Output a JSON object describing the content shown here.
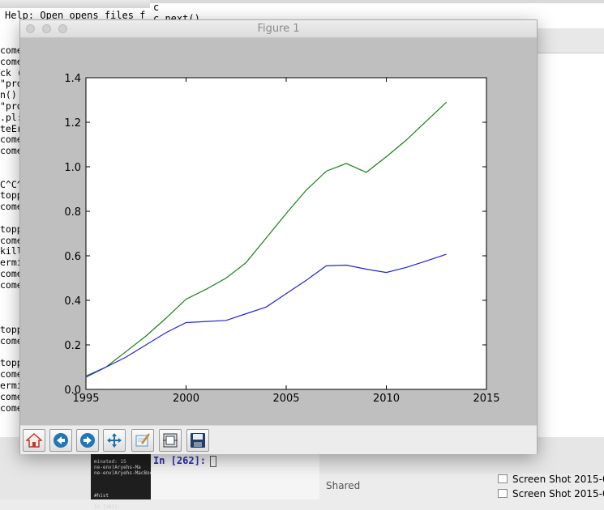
{
  "background": {
    "terminal": {
      "help_line": "Help: Open opens files f",
      "lines": [
        "come",
        "come",
        "ck (",
        "\"pro",
        "n()",
        "\"pro",
        ".pl:",
        "teEr",
        "come",
        "come",
        "",
        "",
        "C^C^",
        "topp",
        "come",
        "",
        "topp",
        "come",
        "kill",
        "ermi",
        "come",
        "come",
        "",
        "",
        "",
        "topp",
        "come",
        "",
        "topp",
        "come",
        "ermi",
        "come",
        "come"
      ]
    },
    "editor": {
      "lines": [
        "c",
        "c.next()"
      ]
    },
    "ipython": {
      "prompt": "In [262]:",
      "tiny_text": [
        "minated: 15",
        "ne-env)Aryehs-Ma",
        "ne-env)Aryehs-MacBook-Pro:gdp_income abdi(trans python process_data.py",
        "",
        "",
        "",
        "#hist",
        "",
        "In [262]:"
      ]
    },
    "finder": {
      "shared_label": "Shared",
      "files": [
        "Screen Shot 2015-0",
        "Screen Shot 2015-0"
      ]
    }
  },
  "figure_window": {
    "title": "Figure 1",
    "toolbar": [
      {
        "icon": "home-icon"
      },
      {
        "icon": "back-arrow-icon"
      },
      {
        "icon": "forward-arrow-icon"
      },
      {
        "icon": "pan-icon"
      },
      {
        "icon": "zoom-rect-icon"
      },
      {
        "icon": "subplots-icon"
      },
      {
        "icon": "save-icon"
      }
    ]
  },
  "chart_data": {
    "type": "line",
    "title": "",
    "xlabel": "",
    "ylabel": "",
    "xlim": [
      1995,
      2015
    ],
    "ylim": [
      0.0,
      1.4
    ],
    "xticks": [
      1995,
      2000,
      2005,
      2010,
      2015
    ],
    "yticks": [
      0.0,
      0.2,
      0.4,
      0.6,
      0.8,
      1.0,
      1.2,
      1.4
    ],
    "xtick_labels": [
      "1995",
      "2000",
      "2005",
      "2010",
      "2015"
    ],
    "ytick_labels": [
      "0.0",
      "0.2",
      "0.4",
      "0.6",
      "0.8",
      "1.0",
      "1.2",
      "1.4"
    ],
    "grid": false,
    "series": [
      {
        "color": "#1a7f1a",
        "x": [
          1995,
          1996,
          1997,
          1998,
          1999,
          2000,
          2001,
          2002,
          2003,
          2004,
          2005,
          2006,
          2007,
          2008,
          2009,
          2010,
          2011,
          2012,
          2013
        ],
        "y": [
          0.06,
          0.1,
          0.17,
          0.24,
          0.32,
          0.405,
          0.45,
          0.5,
          0.57,
          0.68,
          0.79,
          0.895,
          0.98,
          1.015,
          0.975,
          1.045,
          1.12,
          1.205,
          1.29
        ]
      },
      {
        "color": "#2323d6",
        "x": [
          1995,
          1996,
          1997,
          1998,
          1999,
          2000,
          2001,
          2002,
          2003,
          2004,
          2005,
          2006,
          2007,
          2008,
          2009,
          2010,
          2011,
          2012,
          2013
        ],
        "y": [
          0.055,
          0.1,
          0.145,
          0.2,
          0.255,
          0.3,
          0.305,
          0.31,
          0.34,
          0.37,
          0.43,
          0.49,
          0.555,
          0.558,
          0.54,
          0.525,
          0.548,
          0.577,
          0.607
        ]
      }
    ]
  }
}
